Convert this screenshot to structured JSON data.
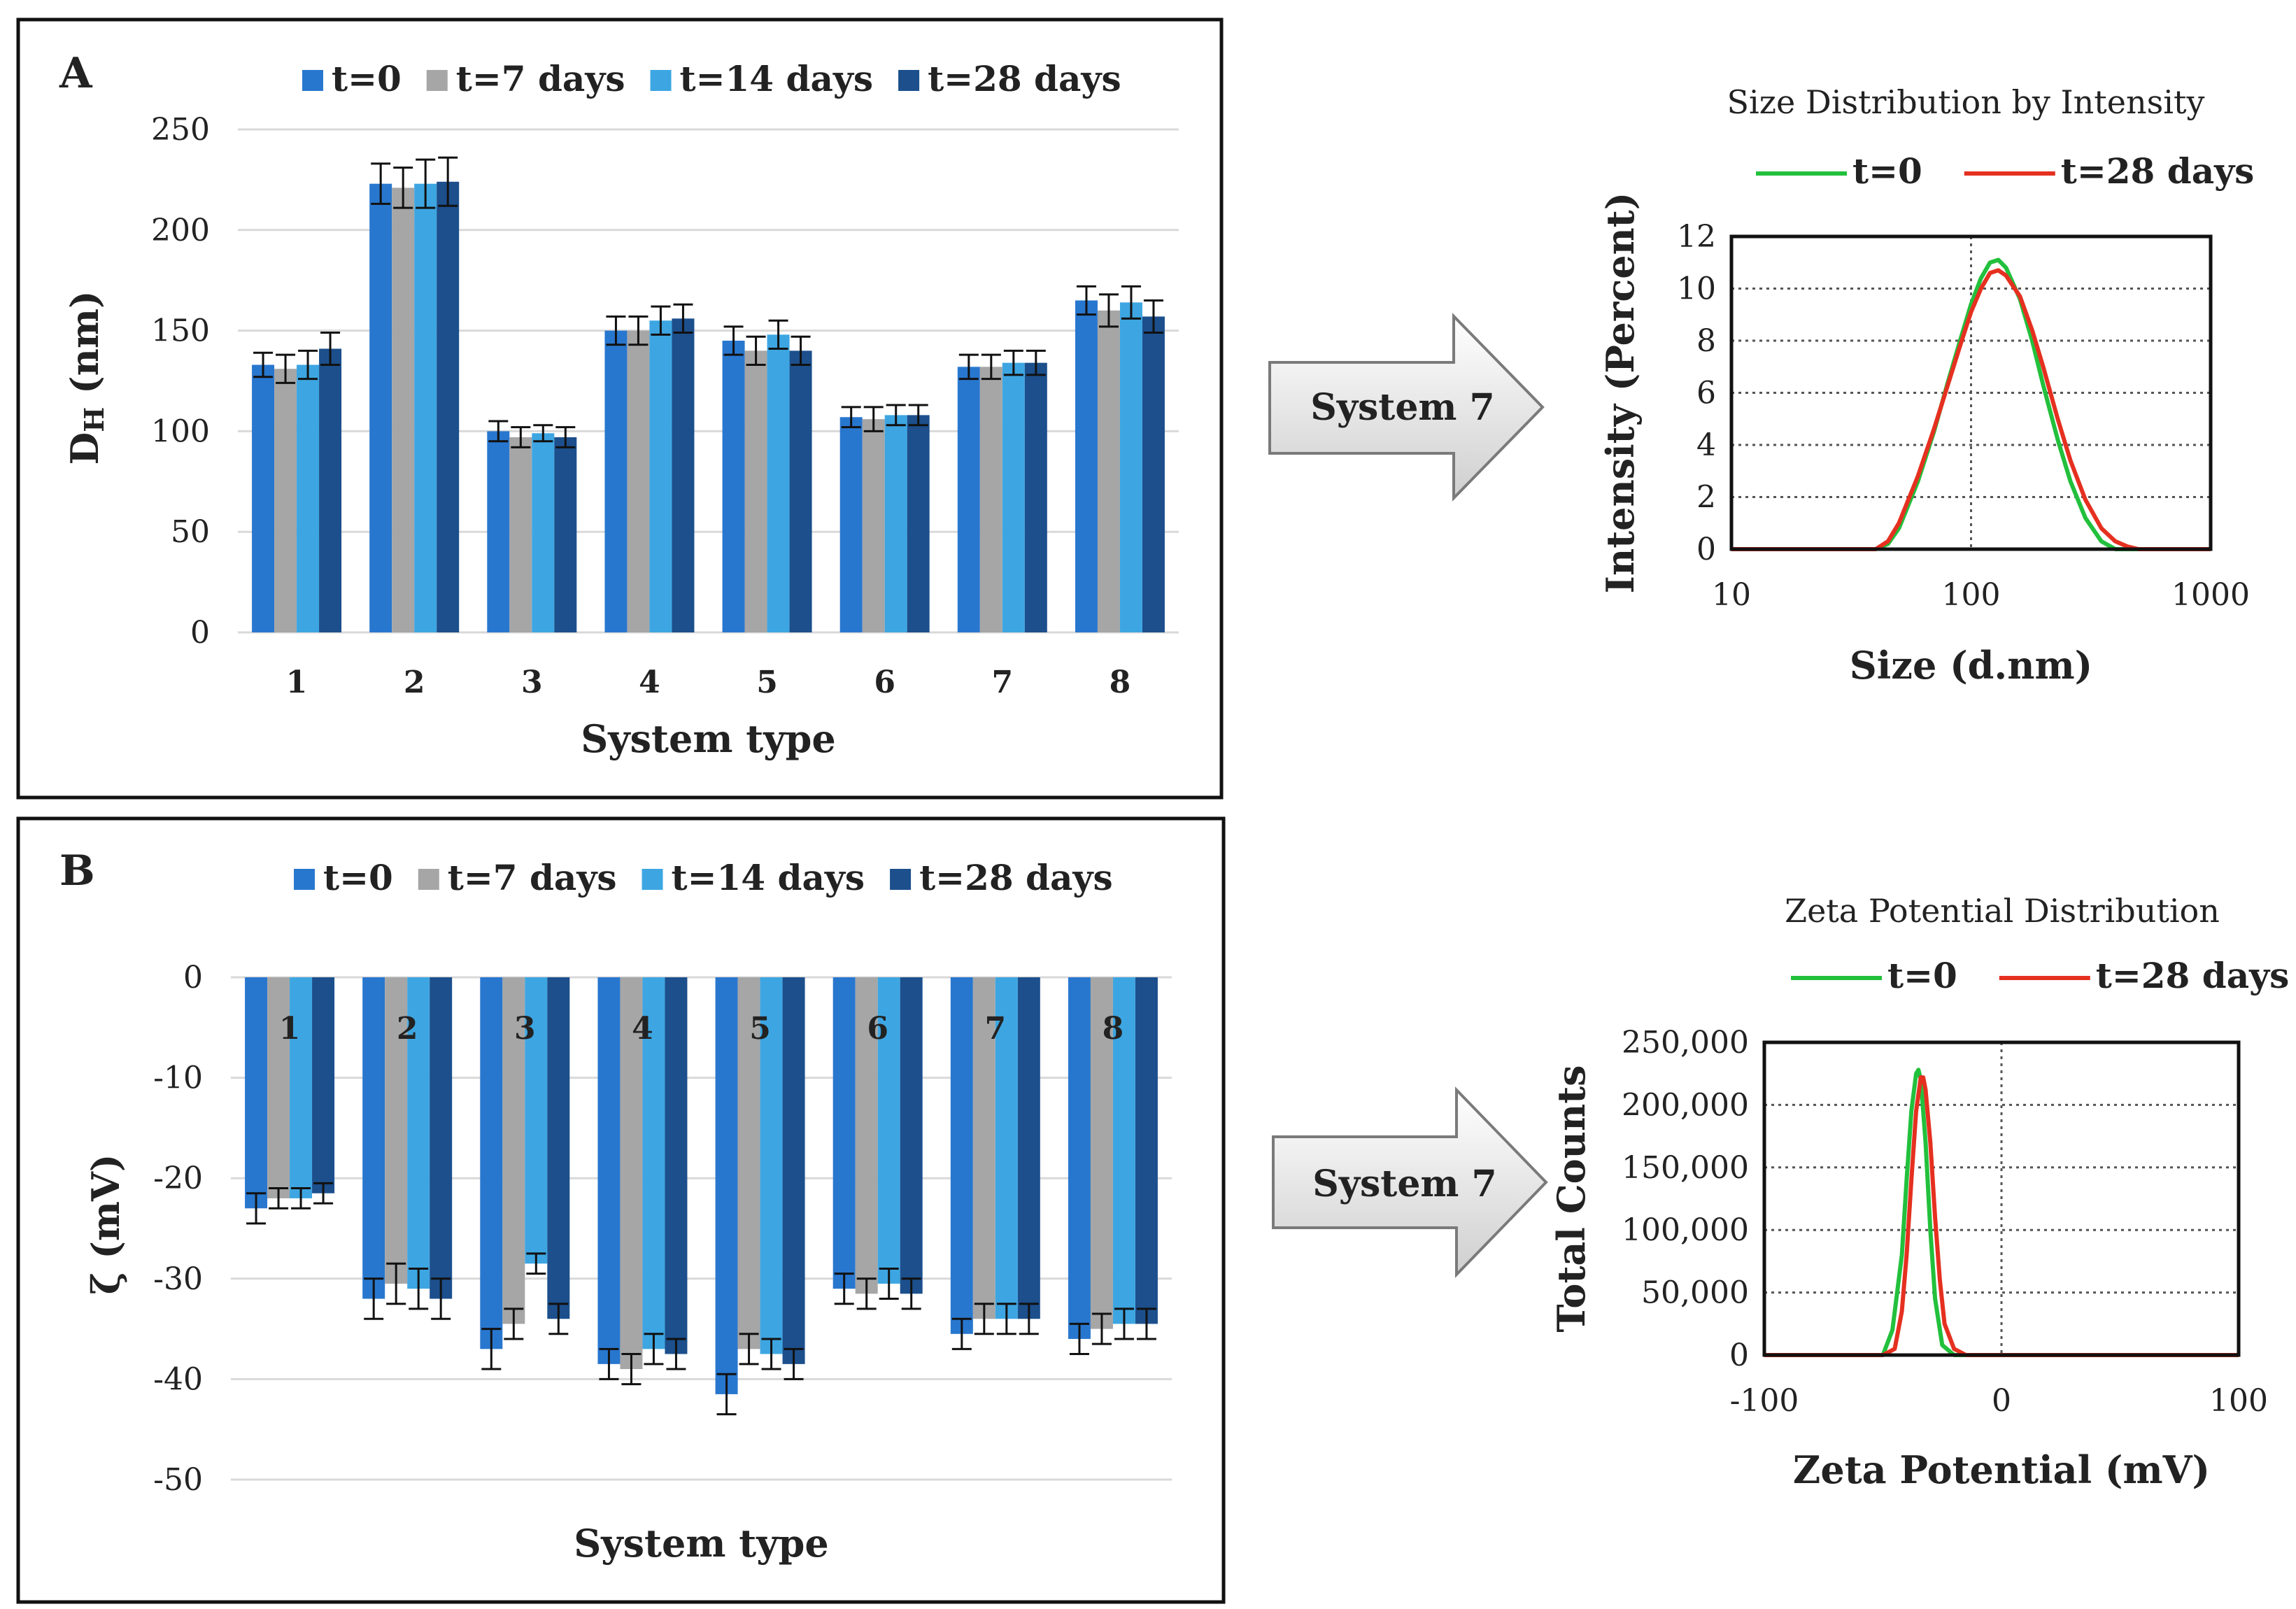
{
  "colors": {
    "t0": "#2877CF",
    "t7": "#A6A6A6",
    "t14": "#3DA6E2",
    "t28": "#1C4F8C",
    "green": "#22C03C",
    "red": "#E53020",
    "grid": "#D9D9D9"
  },
  "arrow_label_top": "System 7",
  "arrow_label_bottom": "System 7",
  "chart_data": [
    {
      "id": "A",
      "panel_label": "A",
      "type": "bar",
      "title": "",
      "xlabel": "System type",
      "ylabel_main": "D",
      "ylabel_sub": "H",
      "ylabel_unit": " (nm)",
      "ylim": [
        0,
        250
      ],
      "yticks": [
        "0",
        "50",
        "100",
        "150",
        "200",
        "250"
      ],
      "ytick_values": [
        0,
        50,
        100,
        150,
        200,
        250
      ],
      "categories": [
        "1",
        "2",
        "3",
        "4",
        "5",
        "6",
        "7",
        "8"
      ],
      "legend_position": "top",
      "series": [
        {
          "name": "t=0",
          "key": "t0",
          "values": [
            133,
            223,
            100,
            150,
            145,
            107,
            132,
            165
          ],
          "errors": [
            6,
            10,
            5,
            7,
            7,
            5,
            6,
            7
          ]
        },
        {
          "name": "t=7 days",
          "key": "t7",
          "values": [
            131,
            221,
            97,
            150,
            140,
            106,
            132,
            160
          ],
          "errors": [
            7,
            10,
            5,
            7,
            7,
            6,
            6,
            8
          ]
        },
        {
          "name": "t=14 days",
          "key": "t14",
          "values": [
            133,
            223,
            99,
            155,
            148,
            108,
            134,
            164
          ],
          "errors": [
            7,
            12,
            4,
            7,
            7,
            5,
            6,
            8
          ]
        },
        {
          "name": "t=28 days",
          "key": "t28",
          "values": [
            141,
            224,
            97,
            156,
            140,
            108,
            134,
            157
          ],
          "errors": [
            8,
            12,
            5,
            7,
            7,
            5,
            6,
            8
          ]
        }
      ]
    },
    {
      "id": "B",
      "panel_label": "B",
      "type": "bar",
      "title": "",
      "xlabel": "System type",
      "ylabel": "ζ (mV)",
      "ylim": [
        -50,
        0
      ],
      "yticks": [
        "0",
        "-10",
        "-20",
        "-30",
        "-40",
        "-50"
      ],
      "ytick_values": [
        0,
        -10,
        -20,
        -30,
        -40,
        -50
      ],
      "categories": [
        "1",
        "2",
        "3",
        "4",
        "5",
        "6",
        "7",
        "8"
      ],
      "legend_position": "top",
      "series": [
        {
          "name": "t=0",
          "key": "t0",
          "values": [
            -23,
            -32,
            -37,
            -38.5,
            -41.5,
            -31,
            -35.5,
            -36
          ],
          "errors": [
            1.5,
            2,
            2,
            1.5,
            2,
            1.5,
            1.5,
            1.5
          ]
        },
        {
          "name": "t=7 days",
          "key": "t7",
          "values": [
            -22,
            -30.5,
            -34.5,
            -39,
            -37,
            -31.5,
            -34,
            -35
          ],
          "errors": [
            1,
            2,
            1.5,
            1.5,
            1.5,
            1.5,
            1.5,
            1.5
          ]
        },
        {
          "name": "t=14 days",
          "key": "t14",
          "values": [
            -22,
            -31,
            -28.5,
            -37,
            -37.5,
            -30.5,
            -34,
            -34.5
          ],
          "errors": [
            1,
            2,
            1,
            1.5,
            1.5,
            1.5,
            1.5,
            1.5
          ]
        },
        {
          "name": "t=28 days",
          "key": "t28",
          "values": [
            -21.5,
            -32,
            -34,
            -37.5,
            -38.5,
            -31.5,
            -34,
            -34.5
          ],
          "errors": [
            1,
            2,
            1.5,
            1.5,
            1.5,
            1.5,
            1.5,
            1.5
          ]
        }
      ]
    },
    {
      "id": "C",
      "type": "line",
      "title": "Size Distribution by Intensity",
      "xlabel": "Size (d.nm)",
      "ylabel": "Intensity (Percent)",
      "xscale": "log",
      "xlim": [
        10,
        1000
      ],
      "ylim": [
        0,
        12
      ],
      "xticks": [
        "10",
        "100",
        "1000"
      ],
      "xtick_values": [
        10,
        100,
        1000
      ],
      "yticks": [
        "0",
        "2",
        "4",
        "6",
        "8",
        "10",
        "12"
      ],
      "ytick_values": [
        0,
        2,
        4,
        6,
        8,
        10,
        12
      ],
      "legend_position": "top",
      "series": [
        {
          "name": "t=0",
          "key": "green",
          "x": [
            10,
            40,
            45,
            50,
            60,
            70,
            80,
            90,
            100,
            110,
            120,
            130,
            140,
            160,
            180,
            200,
            230,
            260,
            300,
            350,
            400,
            450,
            1000
          ],
          "y": [
            0,
            0,
            0.2,
            0.8,
            2.6,
            4.5,
            6.4,
            8.0,
            9.4,
            10.4,
            11.0,
            11.1,
            10.8,
            9.6,
            8.0,
            6.3,
            4.2,
            2.6,
            1.2,
            0.3,
            0,
            0,
            0
          ]
        },
        {
          "name": "t=28 days",
          "key": "red",
          "x": [
            10,
            40,
            45,
            50,
            60,
            70,
            80,
            90,
            100,
            110,
            120,
            130,
            140,
            160,
            180,
            200,
            230,
            260,
            300,
            350,
            400,
            450,
            500,
            1000
          ],
          "y": [
            0,
            0,
            0.3,
            1.0,
            2.8,
            4.6,
            6.3,
            7.8,
            9.1,
            10.0,
            10.6,
            10.7,
            10.5,
            9.7,
            8.4,
            7.0,
            5.0,
            3.4,
            1.9,
            0.8,
            0.3,
            0.1,
            0,
            0
          ]
        }
      ]
    },
    {
      "id": "D",
      "type": "line",
      "title": "Zeta Potential Distribution",
      "xlabel": "Zeta Potential (mV)",
      "ylabel": "Total Counts",
      "xlim": [
        -100,
        100
      ],
      "ylim": [
        0,
        250000
      ],
      "xticks": [
        "-100",
        "0",
        "100"
      ],
      "xtick_values": [
        -100,
        0,
        100
      ],
      "yticks": [
        "0",
        "50,000",
        "100,000",
        "150,000",
        "200,000",
        "250,000"
      ],
      "ytick_values": [
        0,
        50000,
        100000,
        150000,
        200000,
        250000
      ],
      "legend_position": "top",
      "series": [
        {
          "name": "t=0",
          "key": "green",
          "x": [
            -100,
            -55,
            -50,
            -46,
            -42,
            -40,
            -38,
            -36,
            -35,
            -34,
            -32,
            -30,
            -28,
            -25,
            -20,
            100
          ],
          "y": [
            0,
            0,
            0,
            20000,
            80000,
            140000,
            195000,
            225000,
            228000,
            220000,
            170000,
            100000,
            45000,
            8000,
            0,
            0
          ]
        },
        {
          "name": "t=28 days",
          "key": "red",
          "x": [
            -100,
            -50,
            -45,
            -42,
            -40,
            -38,
            -36,
            -34,
            -33,
            -32,
            -30,
            -28,
            -26,
            -24,
            -20,
            -15,
            100
          ],
          "y": [
            0,
            0,
            5000,
            35000,
            80000,
            140000,
            195000,
            222000,
            222000,
            212000,
            170000,
            110000,
            60000,
            25000,
            5000,
            0,
            0
          ]
        }
      ]
    }
  ]
}
